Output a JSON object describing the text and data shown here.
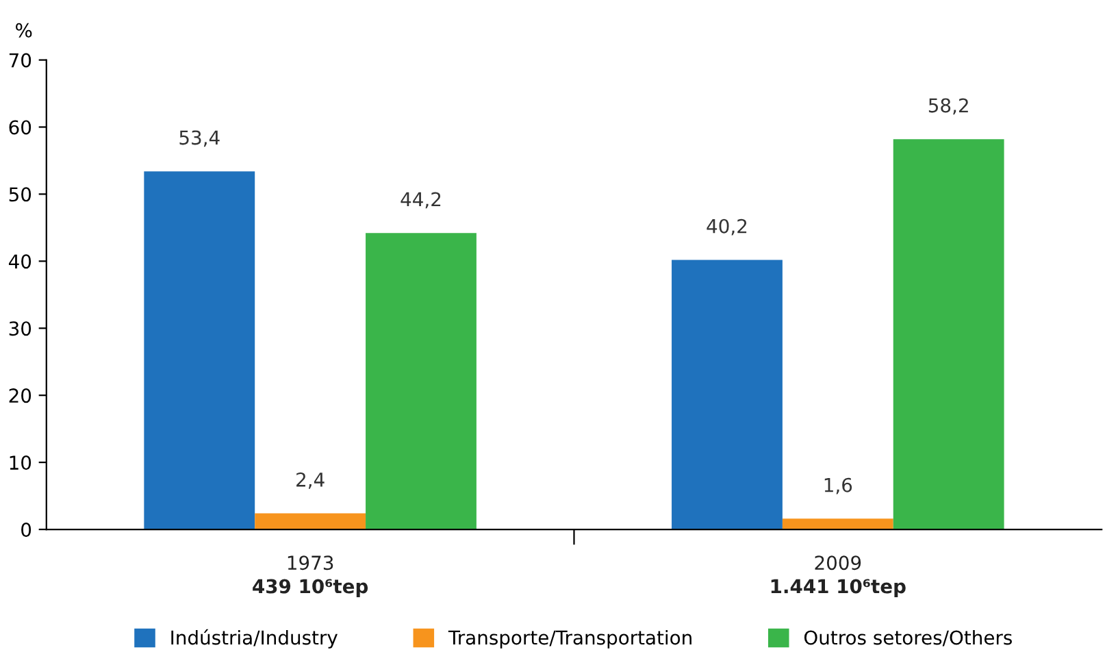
{
  "chart_data": {
    "type": "bar",
    "ylabel": "%",
    "categories": [
      "1973\n439 10⁶tep",
      "2009\n1.441 10⁶tep"
    ],
    "series": [
      {
        "name": "Indústria/Industry",
        "color": "#1f72bd",
        "values": [
          53.4,
          40.2
        ],
        "value_labels": [
          "53,4",
          "40,2"
        ]
      },
      {
        "name": "Transporte/Transportation",
        "color": "#f7941d",
        "values": [
          2.4,
          1.6
        ],
        "value_labels": [
          "2,4",
          "1,6"
        ]
      },
      {
        "name": "Outros setores/Others",
        "color": "#3ab54a",
        "values": [
          44.2,
          58.2
        ],
        "value_labels": [
          "44,2",
          "58,2"
        ]
      }
    ],
    "ylim": [
      0,
      70
    ],
    "yticks": [
      0,
      10,
      20,
      30,
      40,
      50,
      60,
      70
    ],
    "grid": false,
    "legend": "bottom"
  }
}
